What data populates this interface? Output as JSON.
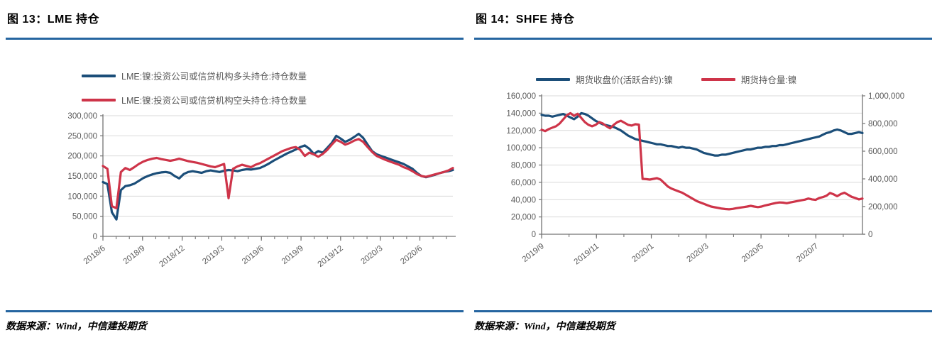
{
  "colors": {
    "rule_blue": "#2565a0",
    "series_blue": "#1b4e79",
    "series_red": "#ce3449",
    "axis": "#737373",
    "grid": "#d9d9d9",
    "tick_text": "#595959"
  },
  "figures": [
    {
      "title": "图 13：LME 持仓",
      "source": "数据来源：Wind，中信建投期货",
      "legend": [
        {
          "label": "LME:镍:投资公司或信贷机构多头持仓:持仓数量",
          "color": "#1b4e79"
        },
        {
          "label": "LME:镍:投资公司或信贷机构空头持仓:持仓数量",
          "color": "#ce3449"
        }
      ]
    },
    {
      "title": "图 14：SHFE 持仓",
      "source": "数据来源：Wind，中信建投期货",
      "legend": [
        {
          "label": "期货收盘价(活跃合约):镍",
          "color": "#1b4e79"
        },
        {
          "label": "期货持仓量:镍",
          "color": "#ce3449"
        }
      ]
    }
  ],
  "chart_data": [
    {
      "type": "line",
      "title": "图 13：LME 持仓",
      "x_months_total": 26.5,
      "x_ticks": [
        {
          "label": "2018/6",
          "month": 0
        },
        {
          "label": "2018/9",
          "month": 3
        },
        {
          "label": "2018/12",
          "month": 6
        },
        {
          "label": "2019/3",
          "month": 9
        },
        {
          "label": "2019/6",
          "month": 12
        },
        {
          "label": "2019/9",
          "month": 15
        },
        {
          "label": "2019/12",
          "month": 18
        },
        {
          "label": "2020/3",
          "month": 21
        },
        {
          "label": "2020/6",
          "month": 24
        }
      ],
      "y_left": {
        "lim_thousands": [
          0,
          300
        ],
        "tick_values_thousands": [
          0,
          50,
          100,
          150,
          200,
          250,
          300
        ],
        "tick_labels": [
          "0",
          "50,000",
          "100,000",
          "150,000",
          "200,000",
          "250,000",
          "300,000"
        ]
      },
      "unit_note": "values in thousands of contracts",
      "series": [
        {
          "name": "LME:镍:投资公司或信贷机构多头持仓:持仓数量",
          "color": "#1b4e79",
          "axis": "left",
          "values_thousands": [
            135,
            130,
            60,
            42,
            115,
            125,
            127,
            131,
            138,
            145,
            150,
            154,
            157,
            159,
            160,
            158,
            150,
            144,
            155,
            160,
            162,
            160,
            158,
            162,
            164,
            162,
            160,
            163,
            165,
            164,
            162,
            165,
            167,
            166,
            168,
            170,
            175,
            181,
            188,
            194,
            200,
            206,
            211,
            216,
            222,
            226,
            218,
            205,
            212,
            208,
            220,
            232,
            250,
            243,
            235,
            240,
            247,
            255,
            245,
            228,
            212,
            204,
            200,
            196,
            192,
            188,
            184,
            180,
            174,
            168,
            158,
            150,
            147,
            150,
            153,
            157,
            160,
            162,
            165
          ]
        },
        {
          "name": "LME:镍:投资公司或信贷机构空头持仓:持仓数量",
          "color": "#ce3449",
          "axis": "left",
          "values_thousands": [
            175,
            168,
            75,
            70,
            160,
            170,
            165,
            172,
            180,
            186,
            190,
            193,
            195,
            192,
            190,
            188,
            190,
            193,
            190,
            187,
            185,
            183,
            180,
            177,
            174,
            172,
            176,
            180,
            95,
            168,
            174,
            178,
            175,
            172,
            178,
            182,
            188,
            194,
            200,
            206,
            212,
            216,
            220,
            222,
            215,
            200,
            208,
            204,
            198,
            205,
            215,
            228,
            240,
            235,
            228,
            232,
            238,
            242,
            235,
            222,
            210,
            200,
            195,
            190,
            186,
            182,
            178,
            172,
            168,
            162,
            155,
            150,
            148,
            151,
            154,
            157,
            160,
            164,
            170
          ]
        }
      ]
    },
    {
      "type": "line",
      "title": "图 14：SHFE 持仓",
      "x_months_total": 11.7,
      "x_ticks": [
        {
          "label": "2019/9",
          "month": 0
        },
        {
          "label": "2019/11",
          "month": 2
        },
        {
          "label": "2020/1",
          "month": 4
        },
        {
          "label": "2020/3",
          "month": 6
        },
        {
          "label": "2020/5",
          "month": 8
        },
        {
          "label": "2020/7",
          "month": 10
        }
      ],
      "y_left": {
        "lim_thousands": [
          0,
          160
        ],
        "tick_values_thousands": [
          0,
          20,
          40,
          60,
          80,
          100,
          120,
          140,
          160
        ],
        "tick_labels": [
          "0",
          "20,000",
          "40,000",
          "60,000",
          "80,000",
          "100,000",
          "120,000",
          "140,000",
          "160,000"
        ]
      },
      "y_right": {
        "lim_thousands": [
          0,
          1000
        ],
        "tick_values_thousands": [
          0,
          200,
          400,
          600,
          800,
          1000
        ],
        "tick_labels": [
          "0",
          "200,000",
          "400,000",
          "600,000",
          "800,000",
          "1,000,000"
        ]
      },
      "unit_note": "left axis: price (yuan/ton); right axis: open interest (lots); values stored in thousands",
      "series": [
        {
          "name": "期货收盘价(活跃合约):镍",
          "color": "#1b4e79",
          "axis": "left",
          "values_thousands": [
            138,
            137,
            137,
            136,
            137,
            138,
            139,
            137,
            135,
            133,
            136,
            140,
            139,
            137,
            134,
            131,
            129,
            127,
            126,
            125,
            124,
            122,
            120,
            117,
            114,
            112,
            110,
            109,
            108,
            107,
            106,
            105,
            104,
            104,
            103,
            102,
            102,
            101,
            100,
            101,
            100,
            100,
            99,
            98,
            96,
            94,
            93,
            92,
            91,
            91,
            92,
            92,
            93,
            94,
            95,
            96,
            97,
            98,
            98,
            99,
            100,
            100,
            101,
            101,
            102,
            102,
            103,
            103,
            104,
            105,
            106,
            107,
            108,
            109,
            110,
            111,
            112,
            113,
            115,
            117,
            118,
            120,
            121,
            120,
            118,
            116,
            116,
            117,
            118,
            117
          ]
        },
        {
          "name": "期货持仓量:镍",
          "color": "#ce3449",
          "axis": "right",
          "values_thousands": [
            755,
            745,
            760,
            770,
            780,
            800,
            830,
            860,
            875,
            855,
            870,
            840,
            810,
            790,
            780,
            790,
            810,
            800,
            780,
            765,
            790,
            810,
            820,
            805,
            790,
            785,
            795,
            792,
            400,
            398,
            395,
            400,
            405,
            395,
            370,
            345,
            330,
            320,
            310,
            300,
            285,
            270,
            255,
            240,
            230,
            220,
            210,
            200,
            195,
            190,
            185,
            182,
            180,
            183,
            188,
            192,
            196,
            200,
            205,
            200,
            196,
            200,
            208,
            214,
            220,
            226,
            230,
            228,
            224,
            230,
            235,
            240,
            245,
            250,
            258,
            252,
            248,
            262,
            268,
            278,
            298,
            288,
            275,
            290,
            300,
            285,
            270,
            262,
            252,
            258
          ]
        }
      ]
    }
  ]
}
